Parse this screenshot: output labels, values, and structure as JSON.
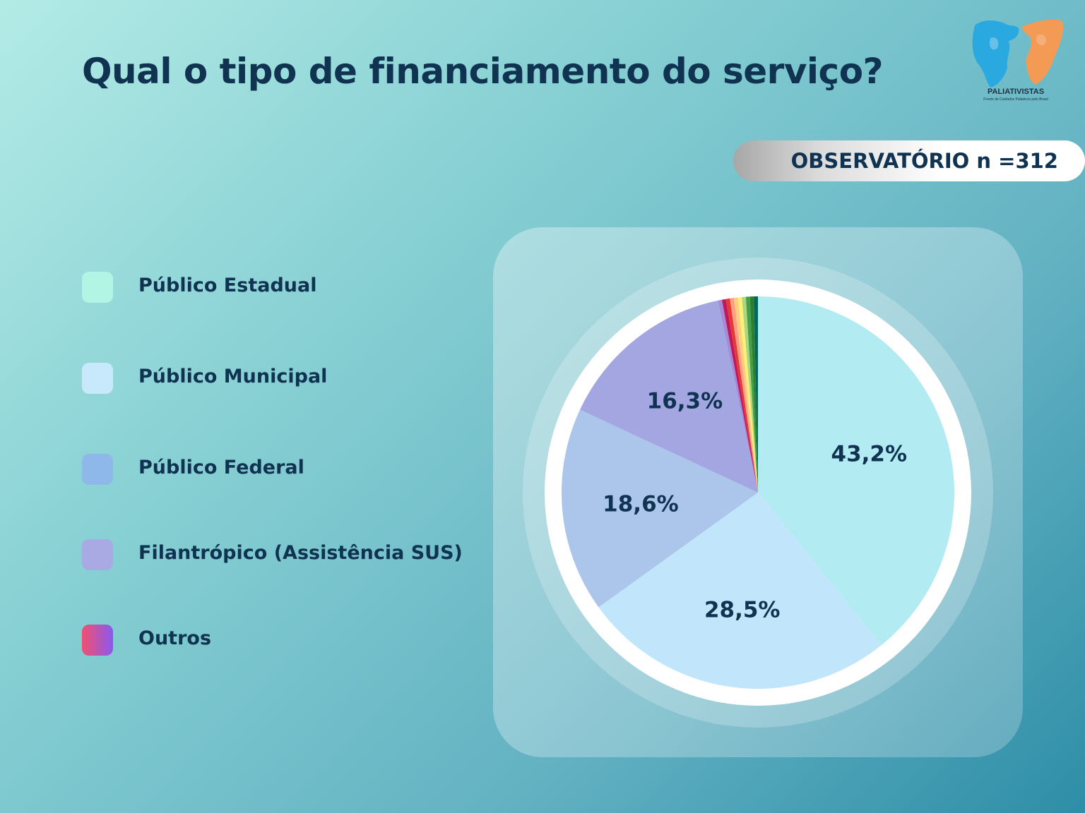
{
  "header": {
    "title": "Qual o tipo de financiamento do serviço?"
  },
  "badge": {
    "text": "OBSERVATÓRIO n =312"
  },
  "logo": {
    "name": "PALIATIVISTAS",
    "tagline": "Frente de Cuidados Paliativos pelo Brasil",
    "colors": [
      "#2aa8e0",
      "#f39a55"
    ]
  },
  "chart_data": {
    "type": "pie",
    "title": "Qual o tipo de financiamento do serviço?",
    "legend_position": "left",
    "categories": [
      "Público Estadual",
      "Público Municipal",
      "Público Federal",
      "Filantrópico (Assistência SUS)",
      "Outros"
    ],
    "slices": [
      {
        "label": "Público Estadual",
        "value": 43.2,
        "value_label": "43,2%",
        "color": "#b2ebf2"
      },
      {
        "label": "Público Municipal",
        "value": 28.5,
        "value_label": "28,5%",
        "color": "#c1e6fb"
      },
      {
        "label": "Público Federal",
        "value": 18.6,
        "value_label": "18,6%",
        "color": "#abc6ea"
      },
      {
        "label": "Filantrópico (Assistência SUS)",
        "value": 16.3,
        "value_label": "16,3%",
        "color": "#a3a6e0"
      },
      {
        "label": "Outros",
        "value": 3.6,
        "value_label": "",
        "color": "#e0457a"
      }
    ],
    "others_colors": [
      "#a38bd8",
      "#c2185b",
      "#e53935",
      "#ff9e80",
      "#ffcc80",
      "#fff176",
      "#aed581",
      "#43a047",
      "#2e7d32",
      "#00695c"
    ],
    "legend_colors": [
      "#b2f5e4",
      "#c8e8fb",
      "#8fb8ea",
      "#a9a9e3",
      [
        "#f0506e",
        "#8a59f0"
      ]
    ]
  }
}
